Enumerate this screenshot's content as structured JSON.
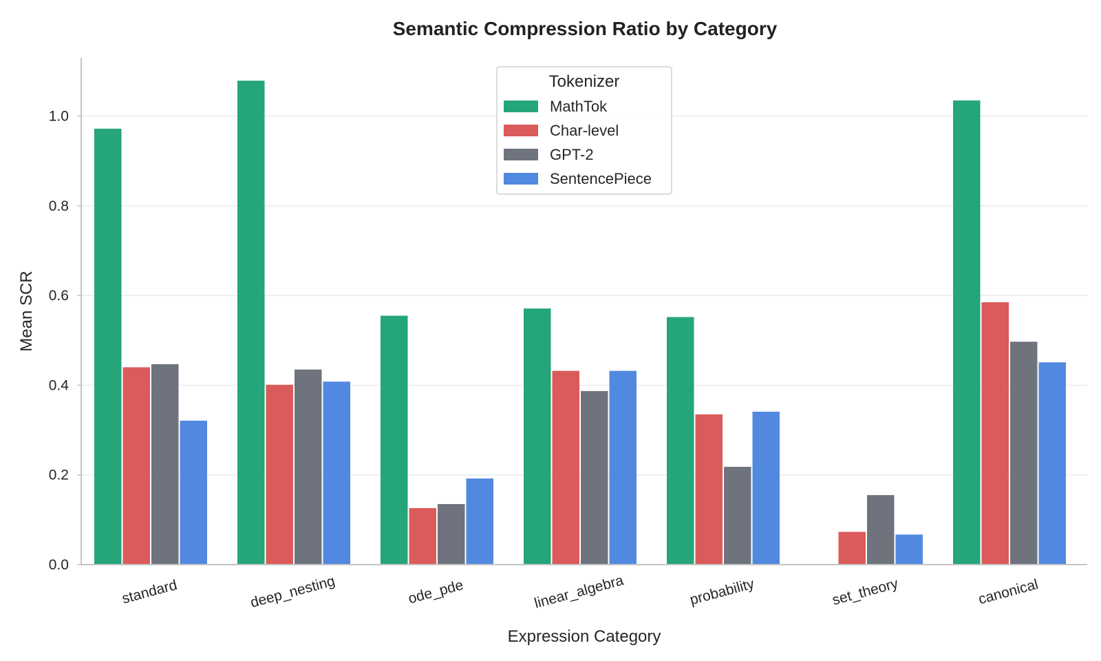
{
  "chart_data": {
    "type": "bar",
    "title": "Semantic Compression Ratio by Category",
    "xlabel": "Expression Category",
    "ylabel": "Mean SCR",
    "ylim": [
      0,
      1.13
    ],
    "yticks": [
      "0.0",
      "0.2",
      "0.4",
      "0.6",
      "0.8",
      "1.0"
    ],
    "ytick_values": [
      0,
      0.2,
      0.4,
      0.6,
      0.8,
      1.0
    ],
    "grid": "horizontal",
    "categories": [
      "standard",
      "deep_nesting",
      "ode_pde",
      "linear_algebra",
      "probability",
      "set_theory",
      "canonical"
    ],
    "legend": {
      "title": "Tokenizer",
      "placement": "top-center"
    },
    "series": [
      {
        "name": "MathTok",
        "color": "#24a57a",
        "values": [
          0.972,
          1.079,
          0.555,
          0.571,
          0.552,
          0.0,
          1.035
        ]
      },
      {
        "name": "Char-level",
        "color": "#db5b5a",
        "values": [
          0.44,
          0.401,
          0.126,
          0.432,
          0.335,
          0.073,
          0.585
        ]
      },
      {
        "name": "GPT-2",
        "color": "#6e737e",
        "values": [
          0.447,
          0.435,
          0.135,
          0.387,
          0.218,
          0.155,
          0.497
        ]
      },
      {
        "name": "SentencePiece",
        "color": "#5289e0",
        "values": [
          0.321,
          0.408,
          0.192,
          0.432,
          0.341,
          0.067,
          0.451
        ]
      }
    ]
  }
}
